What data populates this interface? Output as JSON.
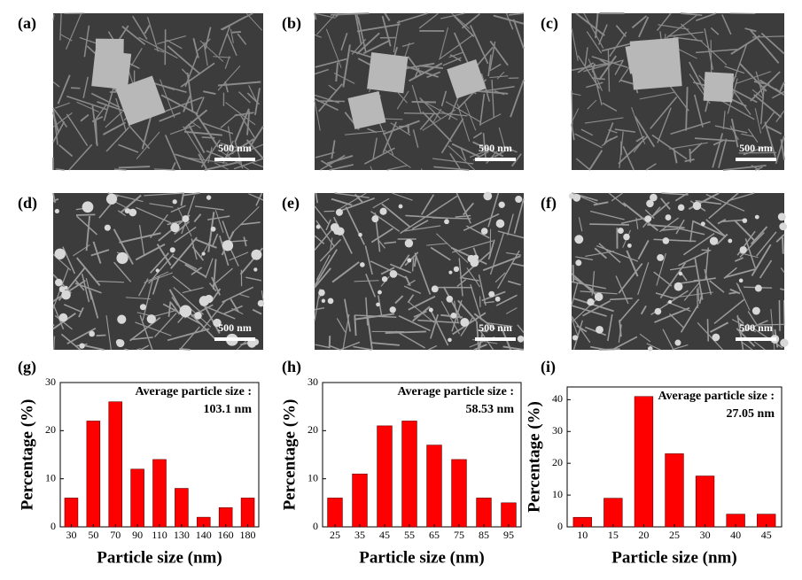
{
  "panels": [
    {
      "label": "(a)",
      "scale_bar": "500 nm"
    },
    {
      "label": "(b)",
      "scale_bar": "500 nm"
    },
    {
      "label": "(c)",
      "scale_bar": "500 nm"
    },
    {
      "label": "(d)",
      "scale_bar": "500 nm"
    },
    {
      "label": "(e)",
      "scale_bar": "500 nm"
    },
    {
      "label": "(f)",
      "scale_bar": "500 nm"
    }
  ],
  "chart_data": [
    {
      "type": "bar",
      "label": "(g)",
      "annotation": [
        "Average particle size :",
        "103.1 nm"
      ],
      "x_label": "Particle size (nm)",
      "y_label": "Percentage (%)",
      "categories": [
        "30",
        "50",
        "70",
        "90",
        "110",
        "130",
        "140",
        "160",
        "180"
      ],
      "values": [
        6,
        22,
        26,
        12,
        14,
        8,
        2,
        4,
        6
      ],
      "color": "#ff0000",
      "ylim": [
        0,
        30
      ],
      "yticks": [
        0,
        10,
        20,
        30
      ]
    },
    {
      "type": "bar",
      "label": "(h)",
      "annotation": [
        "Average particle size :",
        "58.53 nm"
      ],
      "x_label": "Particle size (nm)",
      "y_label": "Percentage (%)",
      "categories": [
        "25",
        "35",
        "45",
        "55",
        "65",
        "75",
        "85",
        "95"
      ],
      "values": [
        6,
        11,
        21,
        22,
        17,
        14,
        6,
        5
      ],
      "color": "#ff0000",
      "ylim": [
        0,
        30
      ],
      "yticks": [
        0,
        10,
        20,
        30
      ]
    },
    {
      "type": "bar",
      "label": "(i)",
      "annotation": [
        "Average particle size :",
        "27.05 nm"
      ],
      "x_label": "Particle size (nm)",
      "y_label": "Percentage (%)",
      "categories": [
        "10",
        "15",
        "20",
        "25",
        "30",
        "40",
        "45"
      ],
      "values": [
        3,
        9,
        41,
        23,
        16,
        4,
        4
      ],
      "color": "#ff0000",
      "ylim": [
        0,
        44
      ],
      "yticks": [
        0,
        10,
        20,
        30,
        40
      ]
    }
  ]
}
